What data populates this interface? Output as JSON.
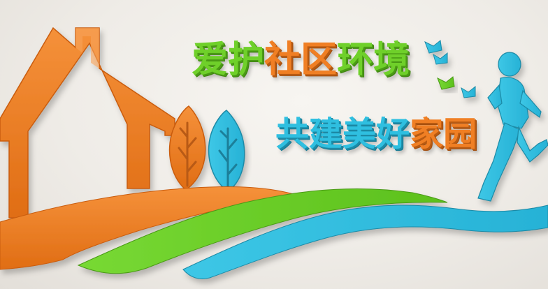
{
  "slogan": {
    "line1": [
      "爱",
      "护",
      "社",
      "区",
      "环",
      "境"
    ],
    "line2": [
      "共",
      "建",
      "美",
      "好",
      "家",
      "园"
    ]
  },
  "palette": {
    "orange": "#f07f24",
    "green": "#6fd02a",
    "blue": "#2fbfe0",
    "wall": "#efece7"
  },
  "icons": [
    "house-outline-icon",
    "leaf-tree-icon",
    "running-figure-icon",
    "bird-icon"
  ]
}
